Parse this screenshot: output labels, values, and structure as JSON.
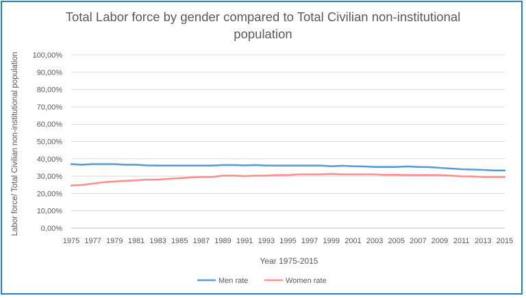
{
  "chart_data": {
    "type": "line",
    "title": [
      "Total Labor force by gender compared to Total Civilian non-institutional",
      "population"
    ],
    "xlabel": "Year 1975-2015",
    "ylabel": "Labor force/ Total Civilian non-institutional population",
    "ylim": [
      0,
      100
    ],
    "y_ticks": [
      "0,00%",
      "10,00%",
      "20,00%",
      "30,00%",
      "40,00%",
      "50,00%",
      "60,00%",
      "70,00%",
      "80,00%",
      "90,00%",
      "100,00%"
    ],
    "x_tick_labels": [
      "1975",
      "1977",
      "1979",
      "1981",
      "1983",
      "1985",
      "1987",
      "1989",
      "1991",
      "1993",
      "1995",
      "1997",
      "1999",
      "2001",
      "2003",
      "2005",
      "2007",
      "2009",
      "2011",
      "2013",
      "2015"
    ],
    "x": [
      1975,
      1976,
      1977,
      1978,
      1979,
      1980,
      1981,
      1982,
      1983,
      1984,
      1985,
      1986,
      1987,
      1988,
      1989,
      1990,
      1991,
      1992,
      1993,
      1994,
      1995,
      1996,
      1997,
      1998,
      1999,
      2000,
      2001,
      2002,
      2003,
      2004,
      2005,
      2006,
      2007,
      2008,
      2009,
      2010,
      2011,
      2012,
      2013,
      2014,
      2015
    ],
    "grid": true,
    "legend_position": "bottom",
    "series": [
      {
        "name": "Men rate",
        "color": "#5b9bd5",
        "values": [
          36.9,
          36.6,
          36.9,
          36.9,
          36.9,
          36.6,
          36.6,
          36.2,
          36.1,
          36.1,
          36.1,
          36.1,
          36.1,
          36.1,
          36.4,
          36.4,
          36.2,
          36.4,
          36.1,
          36.1,
          36.1,
          36.1,
          36.1,
          36.1,
          35.7,
          36.0,
          35.7,
          35.6,
          35.3,
          35.3,
          35.3,
          35.6,
          35.3,
          35.2,
          34.8,
          34.4,
          34.0,
          33.8,
          33.6,
          33.3,
          33.3
        ]
      },
      {
        "name": "Women rate",
        "color": "#ff8f8f",
        "values": [
          24.6,
          24.9,
          25.7,
          26.5,
          26.9,
          27.3,
          27.6,
          28.0,
          28.0,
          28.4,
          28.8,
          29.2,
          29.5,
          29.5,
          30.3,
          30.3,
          30.0,
          30.3,
          30.3,
          30.6,
          30.6,
          31.0,
          31.0,
          31.0,
          31.3,
          31.0,
          31.0,
          31.0,
          31.0,
          30.7,
          30.7,
          30.6,
          30.6,
          30.6,
          30.6,
          30.3,
          29.9,
          29.8,
          29.5,
          29.5,
          29.5
        ]
      }
    ]
  }
}
